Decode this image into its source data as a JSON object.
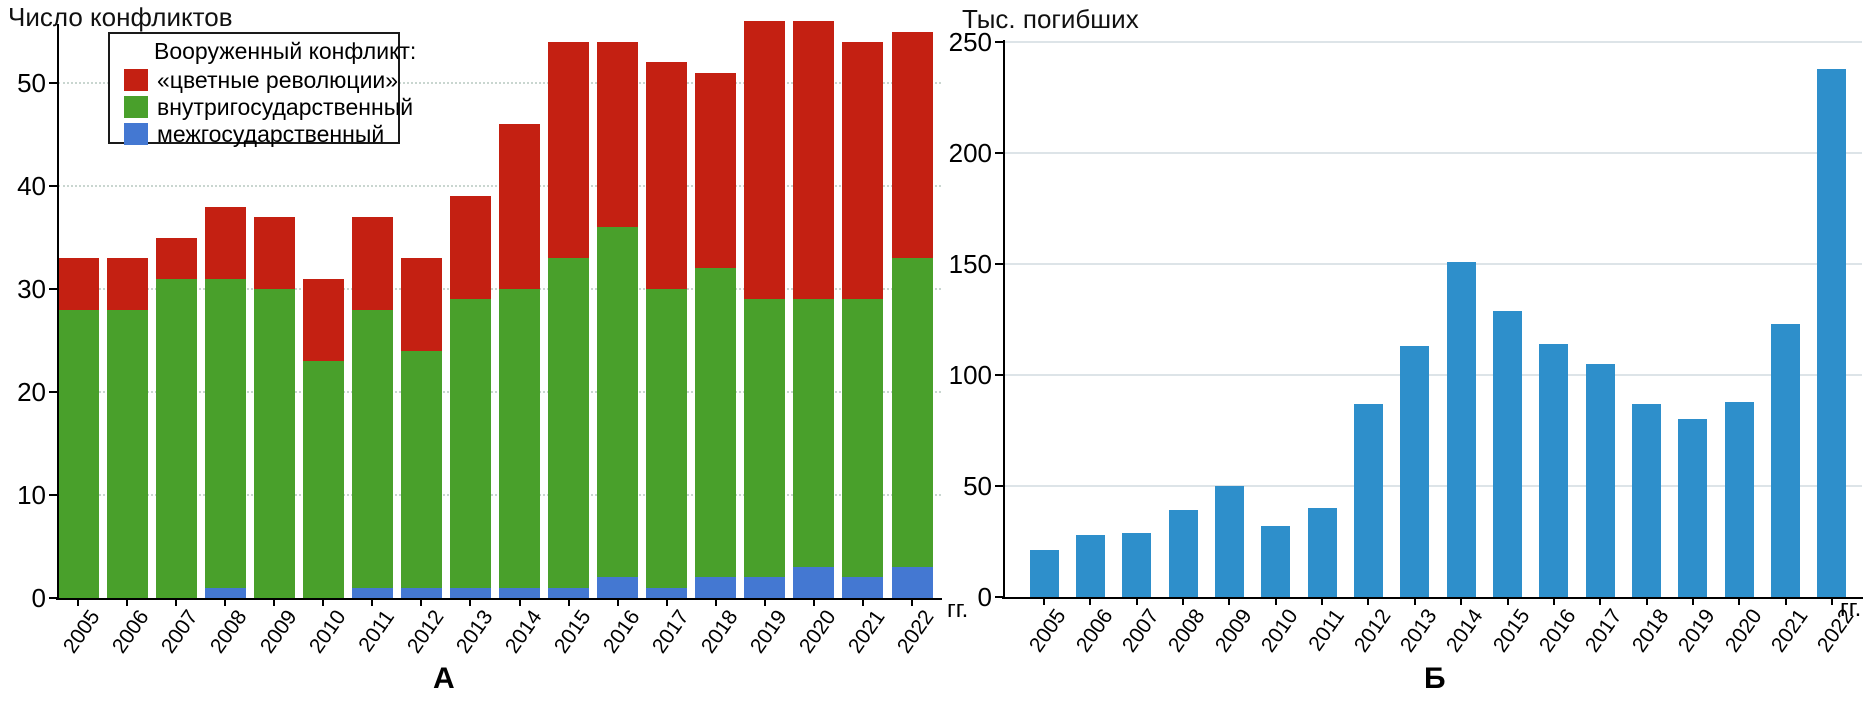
{
  "chart_data": [
    {
      "type": "stacked-bar",
      "panel_label": "А",
      "title": "Число конфликтов",
      "x_axis_suffix": "гг.",
      "categories": [
        "2005",
        "2006",
        "2007",
        "2008",
        "2009",
        "2010",
        "2011",
        "2012",
        "2013",
        "2014",
        "2015",
        "2016",
        "2017",
        "2018",
        "2019",
        "2020",
        "2021",
        "2022"
      ],
      "legend": {
        "title": "Вооруженный конфликт:",
        "position": "top-left",
        "items": [
          {
            "label": "«цветные революции»",
            "color": "#c42012"
          },
          {
            "label": "внутригосударственный",
            "color": "#49a02b"
          },
          {
            "label": "межгосударственный",
            "color": "#4478d2"
          }
        ]
      },
      "series": [
        {
          "name": "межгосударственный",
          "color": "#4478d2",
          "stack_order": 1,
          "values": [
            0,
            0,
            0,
            1,
            0,
            0,
            1,
            1,
            1,
            1,
            1,
            2,
            1,
            2,
            2,
            3,
            2,
            3
          ]
        },
        {
          "name": "внутригосударственный",
          "color": "#49a02b",
          "stack_order": 2,
          "values": [
            28,
            28,
            31,
            30,
            30,
            23,
            27,
            23,
            28,
            29,
            32,
            34,
            29,
            30,
            27,
            26,
            27,
            30
          ]
        },
        {
          "name": "«цветные революции»",
          "color": "#c42012",
          "stack_order": 3,
          "values": [
            5,
            5,
            4,
            7,
            7,
            8,
            9,
            9,
            10,
            16,
            21,
            18,
            22,
            19,
            27,
            27,
            25,
            22
          ]
        }
      ],
      "stack_totals": [
        33,
        33,
        35,
        38,
        37,
        31,
        37,
        33,
        39,
        46,
        54,
        54,
        52,
        51,
        56,
        56,
        54,
        55
      ],
      "ylim": [
        0,
        57
      ],
      "yticks": [
        0,
        10,
        20,
        30,
        40,
        50
      ],
      "grid": "horizontal dotted",
      "x_tick_label_rotation_deg": -55
    },
    {
      "type": "bar",
      "panel_label": "Б",
      "title": "Тыс. погибших",
      "x_axis_suffix": "гг.",
      "categories": [
        "2005",
        "2006",
        "2007",
        "2008",
        "2009",
        "2010",
        "2011",
        "2012",
        "2013",
        "2014",
        "2015",
        "2016",
        "2017",
        "2018",
        "2019",
        "2020",
        "2021",
        "2022"
      ],
      "series": [
        {
          "name": "Тыс. погибших",
          "color": "#2e8fcb",
          "values": [
            21,
            28,
            29,
            39,
            50,
            32,
            40,
            87,
            113,
            151,
            129,
            114,
            105,
            87,
            80,
            88,
            123,
            238
          ]
        }
      ],
      "ylim": [
        0,
        250
      ],
      "yticks": [
        0,
        50,
        100,
        150,
        200,
        250
      ],
      "grid": "horizontal solid",
      "x_tick_label_rotation_deg": -55
    }
  ]
}
